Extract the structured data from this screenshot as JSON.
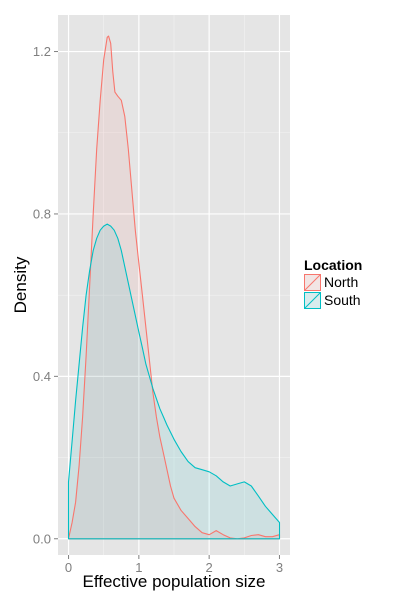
{
  "chart_data": {
    "type": "area",
    "title": "",
    "xlabel": "Effective population size",
    "ylabel": "Density",
    "xlim": [
      -0.15,
      3.15
    ],
    "ylim": [
      -0.04,
      1.29
    ],
    "x_ticks": [
      0,
      1,
      2,
      3
    ],
    "y_ticks": [
      0.0,
      0.4,
      0.8,
      1.2
    ],
    "x_tick_labels": [
      "0",
      "1",
      "2",
      "3"
    ],
    "y_tick_labels": [
      "0.0",
      "0.4",
      "0.8",
      "1.2"
    ],
    "grid": true,
    "legend": {
      "title": "Location",
      "position": "right",
      "entries": [
        "North",
        "South"
      ]
    },
    "series": [
      {
        "name": "North",
        "color": "#F8766D",
        "fill": "#F8766D",
        "x": [
          0,
          0.05,
          0.1,
          0.15,
          0.2,
          0.25,
          0.3,
          0.35,
          0.4,
          0.45,
          0.5,
          0.55,
          0.57,
          0.6,
          0.63,
          0.66,
          0.7,
          0.75,
          0.8,
          0.85,
          0.9,
          0.95,
          1.0,
          1.05,
          1.1,
          1.15,
          1.2,
          1.25,
          1.3,
          1.35,
          1.4,
          1.45,
          1.5,
          1.6,
          1.7,
          1.8,
          1.9,
          2.0,
          2.1,
          2.2,
          2.3,
          2.4,
          2.5,
          2.6,
          2.7,
          2.8,
          2.9,
          3.0
        ],
        "y": [
          0.0,
          0.04,
          0.09,
          0.18,
          0.3,
          0.45,
          0.62,
          0.8,
          0.96,
          1.08,
          1.18,
          1.235,
          1.238,
          1.22,
          1.15,
          1.1,
          1.09,
          1.08,
          1.04,
          0.96,
          0.86,
          0.76,
          0.68,
          0.6,
          0.52,
          0.44,
          0.36,
          0.3,
          0.25,
          0.21,
          0.17,
          0.13,
          0.1,
          0.07,
          0.05,
          0.03,
          0.015,
          0.01,
          0.02,
          0.01,
          0.002,
          0.0,
          0.002,
          0.008,
          0.01,
          0.005,
          0.005,
          0.01
        ]
      },
      {
        "name": "South",
        "color": "#00BFC4",
        "fill": "#00BFC4",
        "x": [
          0,
          0.05,
          0.1,
          0.15,
          0.2,
          0.25,
          0.3,
          0.35,
          0.4,
          0.45,
          0.5,
          0.55,
          0.6,
          0.65,
          0.7,
          0.75,
          0.8,
          0.85,
          0.9,
          0.95,
          1.0,
          1.05,
          1.1,
          1.15,
          1.2,
          1.25,
          1.3,
          1.35,
          1.4,
          1.5,
          1.6,
          1.7,
          1.8,
          1.9,
          2.0,
          2.1,
          2.2,
          2.3,
          2.4,
          2.5,
          2.6,
          2.7,
          2.8,
          2.9,
          3.0
        ],
        "y": [
          0.14,
          0.24,
          0.34,
          0.43,
          0.52,
          0.6,
          0.66,
          0.71,
          0.74,
          0.76,
          0.77,
          0.775,
          0.77,
          0.76,
          0.74,
          0.71,
          0.67,
          0.63,
          0.59,
          0.55,
          0.51,
          0.47,
          0.43,
          0.4,
          0.37,
          0.345,
          0.32,
          0.3,
          0.28,
          0.245,
          0.215,
          0.19,
          0.175,
          0.17,
          0.165,
          0.155,
          0.14,
          0.13,
          0.135,
          0.14,
          0.13,
          0.105,
          0.08,
          0.06,
          0.04
        ]
      }
    ]
  }
}
